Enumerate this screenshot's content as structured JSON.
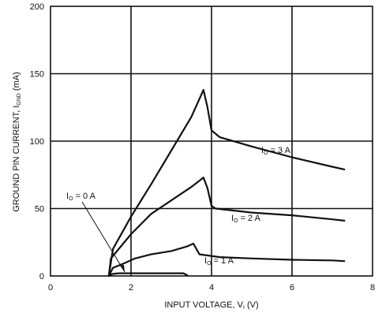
{
  "chart_data": {
    "type": "line",
    "title": "",
    "xlabel": "INPUT VOLTAGE, V",
    "xlabel_sub": "I",
    "xlabel_unit": " (V)",
    "ylabel": "GROUND PIN CURRENT, I",
    "ylabel_sub": "GND",
    "ylabel_unit": " (mA)",
    "xlim": [
      0,
      8
    ],
    "ylim": [
      0,
      200
    ],
    "x_ticks": [
      0,
      2,
      4,
      6,
      8
    ],
    "y_ticks": [
      0,
      50,
      100,
      150,
      200
    ],
    "x_tick_labels": [
      "0",
      "2",
      "4",
      "6",
      "8"
    ],
    "y_tick_labels": [
      "0",
      "50",
      "100",
      "150",
      "200"
    ],
    "grid": true,
    "series": [
      {
        "name": "IO = 0 A",
        "label_main": "I",
        "label_sub": "O",
        "label_rest": " = 0 A",
        "x": [
          1.45,
          1.55,
          1.7,
          2.0,
          2.5,
          3.0,
          3.3,
          3.4
        ],
        "y": [
          0.5,
          1.5,
          2.0,
          2.0,
          2.0,
          2.0,
          2.0,
          0.5
        ]
      },
      {
        "name": "IO = 1 A",
        "label_main": "I",
        "label_sub": "O",
        "label_rest": " = 1 A",
        "x": [
          1.45,
          1.55,
          1.8,
          2.1,
          2.5,
          3.0,
          3.4,
          3.55,
          3.7,
          4.2,
          5.0,
          6.0,
          7.0,
          7.3
        ],
        "y": [
          0,
          6,
          9,
          13,
          16,
          18.5,
          22,
          24,
          16,
          14,
          13,
          12,
          11.5,
          11
        ]
      },
      {
        "name": "IO = 2 A",
        "label_main": "I",
        "label_sub": "O",
        "label_rest": " = 2 A",
        "x": [
          1.45,
          1.5,
          2.0,
          2.5,
          3.0,
          3.5,
          3.8,
          3.9,
          4.0,
          4.1,
          5.0,
          6.0,
          7.0,
          7.3
        ],
        "y": [
          0,
          13,
          31,
          46,
          56,
          66,
          73,
          65,
          52,
          50,
          47,
          45,
          42,
          41
        ]
      },
      {
        "name": "IO = 3 A",
        "label_main": "I",
        "label_sub": "O",
        "label_rest": " = 3 A",
        "x": [
          1.45,
          1.55,
          2.0,
          2.5,
          3.0,
          3.5,
          3.8,
          3.9,
          4.0,
          4.2,
          5.0,
          6.0,
          7.0,
          7.3
        ],
        "y": [
          0,
          20,
          44,
          68,
          93,
          118,
          138,
          125,
          108,
          103,
          96,
          88,
          81,
          79
        ]
      }
    ],
    "colors": {
      "line": "#111111",
      "grid": "#111111",
      "text": "#111111"
    }
  }
}
